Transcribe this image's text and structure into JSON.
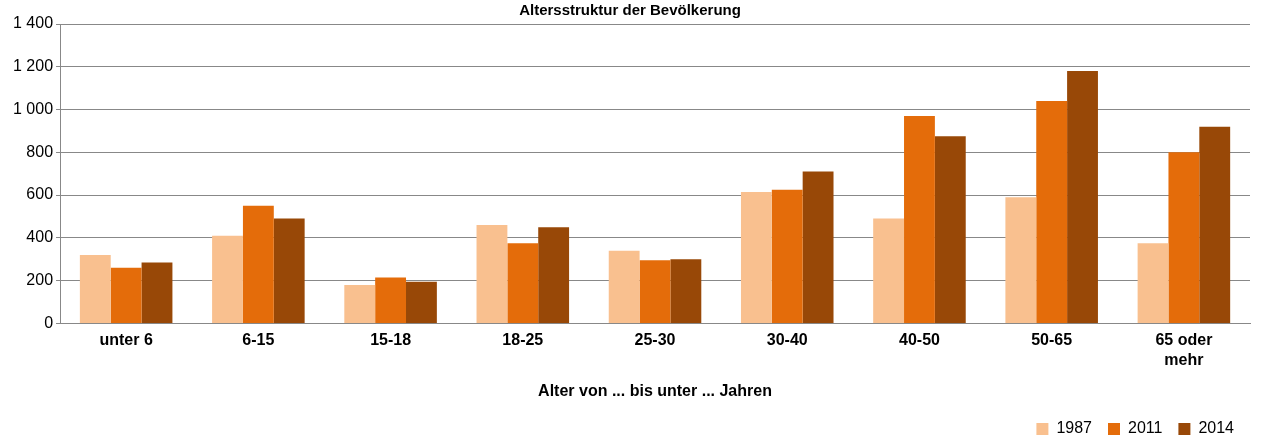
{
  "chart_data": {
    "type": "bar",
    "title": "Altersstruktur der Bevölkerung",
    "xlabel": "Alter von ... bis unter ... Jahren",
    "categories": [
      "unter 6",
      "6-15",
      "15-18",
      "18-25",
      "25-30",
      "30-40",
      "40-50",
      "50-65",
      "65 oder mehr"
    ],
    "series": [
      {
        "name": "1987",
        "color": "#f9c08f",
        "values": [
          320,
          410,
          180,
          460,
          340,
          615,
          490,
          590,
          375
        ]
      },
      {
        "name": "2011",
        "color": "#e46c0a",
        "values": [
          260,
          550,
          215,
          375,
          295,
          625,
          970,
          1040,
          800
        ]
      },
      {
        "name": "2014",
        "color": "#984807",
        "values": [
          285,
          490,
          195,
          450,
          300,
          710,
          875,
          1180,
          920
        ]
      }
    ],
    "ylim": [
      0,
      1400
    ],
    "yticks": [
      0,
      200,
      400,
      600,
      800,
      {
        "value": 1000,
        "label": "1 000"
      },
      {
        "value": 1200,
        "label": "1 200"
      },
      {
        "value": 1400,
        "label": "1 400"
      }
    ],
    "grid": "y",
    "legend": "bottom right"
  }
}
